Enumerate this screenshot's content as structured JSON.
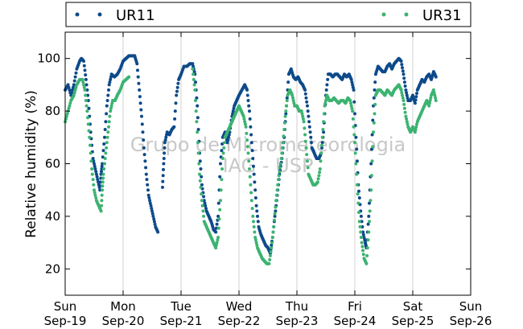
{
  "chart_data": {
    "type": "scatter",
    "ylabel": "Relative humidity (%)",
    "ylim": [
      10,
      110
    ],
    "xlim": [
      0,
      7
    ],
    "yticks": [
      20,
      40,
      60,
      80,
      100
    ],
    "xticks": [
      {
        "day": "Sun",
        "date": "Sep-19"
      },
      {
        "day": "Mon",
        "date": "Sep-20"
      },
      {
        "day": "Tue",
        "date": "Sep-21"
      },
      {
        "day": "Wed",
        "date": "Sep-22"
      },
      {
        "day": "Thu",
        "date": "Sep-23"
      },
      {
        "day": "Fri",
        "date": "Sep-24"
      },
      {
        "day": "Sat",
        "date": "Sep-25"
      },
      {
        "day": "Sun",
        "date": "Sep-26"
      }
    ],
    "grid": "vertical",
    "legend_position": "top",
    "watermark": [
      "Grupo de Micrometeorologia",
      "IAG - USP"
    ],
    "series": [
      {
        "name": "UR11",
        "color": "#0d4a8a",
        "points": [
          [
            0.0,
            88
          ],
          [
            0.05,
            90
          ],
          [
            0.1,
            86
          ],
          [
            0.15,
            90
          ],
          [
            0.2,
            96
          ],
          [
            0.25,
            99
          ],
          [
            0.28,
            100
          ],
          [
            0.32,
            99
          ],
          [
            0.36,
            92
          ],
          [
            0.4,
            84
          ],
          [
            0.44,
            72
          ],
          [
            0.48,
            62
          ],
          [
            0.52,
            58
          ],
          [
            0.56,
            54
          ],
          [
            0.6,
            50
          ],
          [
            0.62,
            56
          ],
          [
            0.64,
            60
          ],
          [
            0.68,
            70
          ],
          [
            0.72,
            82
          ],
          [
            0.76,
            90
          ],
          [
            0.8,
            94
          ],
          [
            0.85,
            93
          ],
          [
            0.9,
            94
          ],
          [
            0.95,
            96
          ],
          [
            1.0,
            99
          ],
          [
            1.05,
            100
          ],
          [
            1.1,
            101
          ],
          [
            1.15,
            101
          ],
          [
            1.2,
            101
          ],
          [
            1.24,
            98
          ],
          [
            1.28,
            88
          ],
          [
            1.32,
            78
          ],
          [
            1.36,
            66
          ],
          [
            1.4,
            56
          ],
          [
            1.44,
            48
          ],
          [
            1.48,
            44
          ],
          [
            1.52,
            40
          ],
          [
            1.56,
            36
          ],
          [
            1.6,
            34
          ],
          [
            1.68,
            51
          ],
          [
            1.7,
            60
          ],
          [
            1.72,
            68
          ],
          [
            1.76,
            72
          ],
          [
            1.8,
            71
          ],
          [
            1.84,
            73
          ],
          [
            1.88,
            74
          ],
          [
            1.92,
            86
          ],
          [
            1.96,
            92
          ],
          [
            2.0,
            94
          ],
          [
            2.05,
            97
          ],
          [
            2.1,
            97
          ],
          [
            2.15,
            98
          ],
          [
            2.2,
            98
          ],
          [
            2.24,
            94
          ],
          [
            2.28,
            82
          ],
          [
            2.32,
            64
          ],
          [
            2.36,
            52
          ],
          [
            2.4,
            46
          ],
          [
            2.44,
            42
          ],
          [
            2.48,
            40
          ],
          [
            2.52,
            38
          ],
          [
            2.56,
            35
          ],
          [
            2.6,
            34
          ],
          [
            2.64,
            40
          ],
          [
            2.68,
            60
          ],
          [
            2.72,
            70
          ],
          [
            2.76,
            72
          ],
          [
            2.8,
            68
          ],
          [
            2.84,
            72
          ],
          [
            2.88,
            78
          ],
          [
            2.92,
            82
          ],
          [
            2.96,
            84
          ],
          [
            3.0,
            86
          ],
          [
            3.05,
            88
          ],
          [
            3.1,
            90
          ],
          [
            3.14,
            88
          ],
          [
            3.18,
            80
          ],
          [
            3.22,
            68
          ],
          [
            3.26,
            56
          ],
          [
            3.3,
            44
          ],
          [
            3.34,
            36
          ],
          [
            3.38,
            33
          ],
          [
            3.42,
            31
          ],
          [
            3.46,
            29
          ],
          [
            3.5,
            28
          ],
          [
            3.54,
            26
          ],
          [
            3.58,
            32
          ],
          [
            3.62,
            40
          ],
          [
            3.66,
            48
          ],
          [
            3.7,
            56
          ],
          [
            3.74,
            62
          ],
          [
            3.78,
            70
          ],
          [
            3.82,
            82
          ],
          [
            3.86,
            94
          ],
          [
            3.9,
            96
          ],
          [
            3.94,
            93
          ],
          [
            3.98,
            92
          ],
          [
            4.02,
            93
          ],
          [
            4.06,
            91
          ],
          [
            4.1,
            90
          ],
          [
            4.14,
            88
          ],
          [
            4.18,
            82
          ],
          [
            4.22,
            74
          ],
          [
            4.26,
            66
          ],
          [
            4.3,
            64
          ],
          [
            4.34,
            62
          ],
          [
            4.38,
            62
          ],
          [
            4.42,
            64
          ],
          [
            4.46,
            72
          ],
          [
            4.5,
            86
          ],
          [
            4.54,
            94
          ],
          [
            4.58,
            94
          ],
          [
            4.62,
            93
          ],
          [
            4.66,
            94
          ],
          [
            4.7,
            94
          ],
          [
            4.74,
            93
          ],
          [
            4.78,
            92
          ],
          [
            4.82,
            94
          ],
          [
            4.86,
            93
          ],
          [
            4.9,
            94
          ],
          [
            4.94,
            92
          ],
          [
            4.98,
            88
          ],
          [
            5.02,
            70
          ],
          [
            5.06,
            52
          ],
          [
            5.1,
            42
          ],
          [
            5.14,
            34
          ],
          [
            5.18,
            30
          ],
          [
            5.2,
            28
          ],
          [
            5.24,
            40
          ],
          [
            5.28,
            60
          ],
          [
            5.32,
            82
          ],
          [
            5.36,
            94
          ],
          [
            5.4,
            97
          ],
          [
            5.44,
            96
          ],
          [
            5.48,
            95
          ],
          [
            5.52,
            95
          ],
          [
            5.56,
            97
          ],
          [
            5.6,
            98
          ],
          [
            5.64,
            96
          ],
          [
            5.68,
            98
          ],
          [
            5.72,
            99
          ],
          [
            5.76,
            100
          ],
          [
            5.8,
            99
          ],
          [
            5.84,
            94
          ],
          [
            5.88,
            88
          ],
          [
            5.92,
            84
          ],
          [
            5.96,
            84
          ],
          [
            6.0,
            86
          ],
          [
            6.04,
            83
          ],
          [
            6.08,
            88
          ],
          [
            6.12,
            90
          ],
          [
            6.16,
            92
          ],
          [
            6.2,
            91
          ],
          [
            6.24,
            93
          ],
          [
            6.28,
            94
          ],
          [
            6.32,
            92
          ],
          [
            6.36,
            95
          ],
          [
            6.4,
            93
          ]
        ]
      },
      {
        "name": "UR31",
        "color": "#3cb371",
        "points": [
          [
            0.0,
            76
          ],
          [
            0.05,
            80
          ],
          [
            0.1,
            84
          ],
          [
            0.15,
            86
          ],
          [
            0.2,
            90
          ],
          [
            0.25,
            92
          ],
          [
            0.3,
            92
          ],
          [
            0.34,
            88
          ],
          [
            0.38,
            80
          ],
          [
            0.42,
            70
          ],
          [
            0.46,
            58
          ],
          [
            0.5,
            50
          ],
          [
            0.54,
            46
          ],
          [
            0.58,
            44
          ],
          [
            0.62,
            42
          ],
          [
            0.64,
            50
          ],
          [
            0.66,
            56
          ],
          [
            0.7,
            64
          ],
          [
            0.74,
            72
          ],
          [
            0.78,
            80
          ],
          [
            0.82,
            84
          ],
          [
            0.86,
            84
          ],
          [
            0.9,
            86
          ],
          [
            0.95,
            88
          ],
          [
            1.0,
            91
          ],
          [
            1.05,
            92
          ],
          [
            1.1,
            93
          ],
          [
            2.2,
            96
          ],
          [
            2.24,
            88
          ],
          [
            2.28,
            72
          ],
          [
            2.32,
            56
          ],
          [
            2.36,
            46
          ],
          [
            2.4,
            38
          ],
          [
            2.44,
            36
          ],
          [
            2.48,
            34
          ],
          [
            2.52,
            32
          ],
          [
            2.56,
            30
          ],
          [
            2.6,
            28
          ],
          [
            2.64,
            32
          ],
          [
            2.68,
            46
          ],
          [
            2.72,
            62
          ],
          [
            2.76,
            70
          ],
          [
            2.8,
            72
          ],
          [
            2.84,
            74
          ],
          [
            2.88,
            76
          ],
          [
            2.92,
            78
          ],
          [
            2.96,
            80
          ],
          [
            3.0,
            82
          ],
          [
            3.04,
            80
          ],
          [
            3.08,
            78
          ],
          [
            3.12,
            74
          ],
          [
            3.16,
            64
          ],
          [
            3.2,
            52
          ],
          [
            3.24,
            40
          ],
          [
            3.28,
            32
          ],
          [
            3.32,
            28
          ],
          [
            3.36,
            26
          ],
          [
            3.4,
            24
          ],
          [
            3.44,
            23
          ],
          [
            3.48,
            22
          ],
          [
            3.52,
            22
          ],
          [
            3.56,
            28
          ],
          [
            3.6,
            36
          ],
          [
            3.64,
            46
          ],
          [
            3.68,
            54
          ],
          [
            3.72,
            60
          ],
          [
            3.76,
            68
          ],
          [
            3.8,
            78
          ],
          [
            3.84,
            86
          ],
          [
            3.88,
            88
          ],
          [
            3.92,
            86
          ],
          [
            3.96,
            82
          ],
          [
            4.0,
            82
          ],
          [
            4.04,
            80
          ],
          [
            4.08,
            80
          ],
          [
            4.12,
            76
          ],
          [
            4.16,
            66
          ],
          [
            4.2,
            56
          ],
          [
            4.24,
            54
          ],
          [
            4.28,
            52
          ],
          [
            4.32,
            52
          ],
          [
            4.36,
            53
          ],
          [
            4.4,
            58
          ],
          [
            4.44,
            70
          ],
          [
            4.48,
            82
          ],
          [
            4.52,
            86
          ],
          [
            4.56,
            84
          ],
          [
            4.6,
            84
          ],
          [
            4.64,
            85
          ],
          [
            4.68,
            84
          ],
          [
            4.72,
            83
          ],
          [
            4.76,
            84
          ],
          [
            4.8,
            84
          ],
          [
            4.84,
            83
          ],
          [
            4.88,
            85
          ],
          [
            4.92,
            84
          ],
          [
            4.96,
            80
          ],
          [
            5.0,
            68
          ],
          [
            5.04,
            52
          ],
          [
            5.08,
            38
          ],
          [
            5.12,
            30
          ],
          [
            5.16,
            24
          ],
          [
            5.2,
            22
          ],
          [
            5.24,
            34
          ],
          [
            5.28,
            50
          ],
          [
            5.32,
            72
          ],
          [
            5.36,
            86
          ],
          [
            5.4,
            88
          ],
          [
            5.44,
            88
          ],
          [
            5.48,
            87
          ],
          [
            5.52,
            86
          ],
          [
            5.56,
            88
          ],
          [
            5.6,
            87
          ],
          [
            5.64,
            86
          ],
          [
            5.68,
            88
          ],
          [
            5.72,
            89
          ],
          [
            5.76,
            90
          ],
          [
            5.8,
            88
          ],
          [
            5.84,
            84
          ],
          [
            5.88,
            78
          ],
          [
            5.92,
            74
          ],
          [
            5.96,
            72
          ],
          [
            6.0,
            74
          ],
          [
            6.04,
            72
          ],
          [
            6.08,
            76
          ],
          [
            6.12,
            78
          ],
          [
            6.16,
            80
          ],
          [
            6.2,
            82
          ],
          [
            6.24,
            84
          ],
          [
            6.28,
            82
          ],
          [
            6.32,
            86
          ],
          [
            6.36,
            88
          ],
          [
            6.4,
            84
          ]
        ]
      }
    ]
  }
}
